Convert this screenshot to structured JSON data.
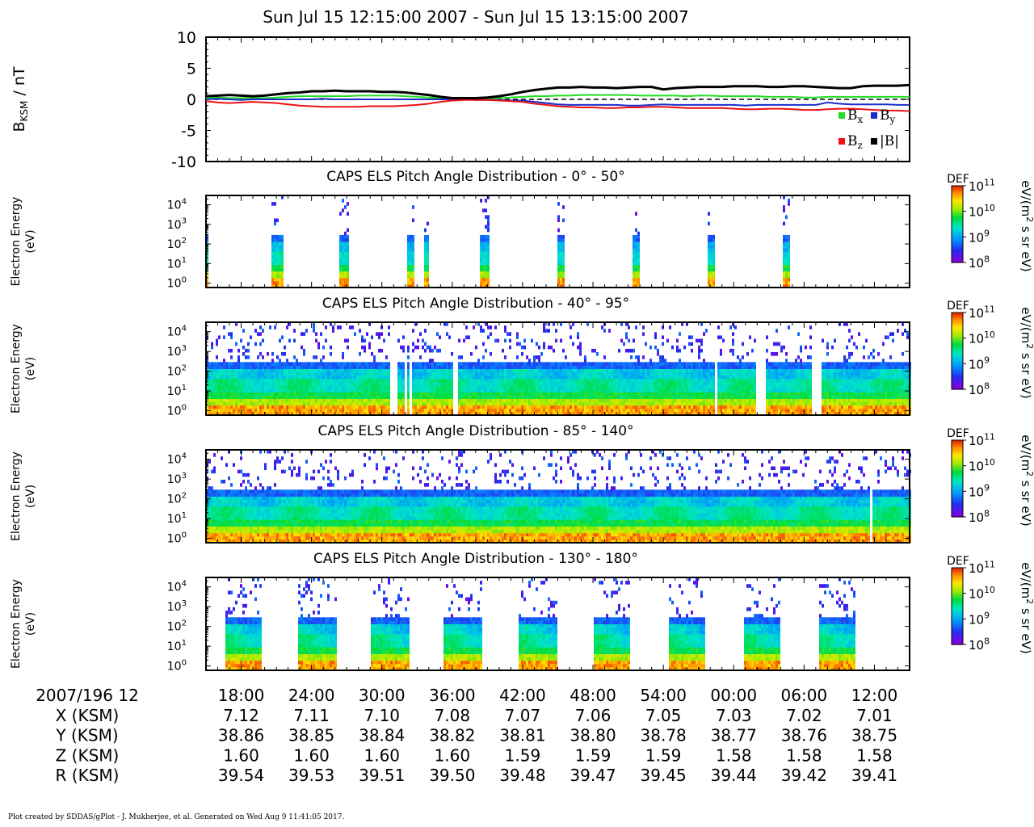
{
  "figure": {
    "title": "Sun Jul 15 12:15:00 2007 - Sun Jul 15 13:15:00 2007",
    "footer": "Plot created by SDDAS/gPlot - J. Mukherjee, et al.  Generated on Wed Aug 9 11:41:05 2017."
  },
  "mag_panel": {
    "ylabel_main": "B",
    "ylabel_sub": "KSM",
    "ylabel_unit": " / nT",
    "legend": [
      {
        "main": "B",
        "sub": "x",
        "color": "#22dd22"
      },
      {
        "main": "B",
        "sub": "y",
        "color": "#1a2ccc"
      },
      {
        "main": "B",
        "sub": "z",
        "color": "#ee1111"
      },
      {
        "main": "|B|",
        "sub": "",
        "color": "#000000"
      }
    ]
  },
  "spectro_common": {
    "ylabel_line1": "Electron Energy",
    "ylabel_line2": "(eV)",
    "cbar_label": "DEF",
    "cbar_unit_pre": "eV/(m",
    "cbar_unit_sup": "2",
    "cbar_unit_post": " s sr eV)",
    "cbar_ticks": [
      {
        "base": "10",
        "exp": "11"
      },
      {
        "base": "10",
        "exp": "10"
      },
      {
        "base": "10",
        "exp": "9"
      },
      {
        "base": "10",
        "exp": "8"
      }
    ],
    "energy_ticks": [
      {
        "base": "10",
        "exp": "4"
      },
      {
        "base": "10",
        "exp": "3"
      },
      {
        "base": "10",
        "exp": "2"
      },
      {
        "base": "10",
        "exp": "1"
      },
      {
        "base": "10",
        "exp": "0"
      }
    ]
  },
  "ephemeris": {
    "date_label": "2007/196 12",
    "times": [
      "18:00",
      "24:00",
      "30:00",
      "36:00",
      "42:00",
      "48:00",
      "54:00",
      "00:00",
      "06:00",
      "12:00"
    ],
    "rows": [
      {
        "label": "X (KSM)",
        "values": [
          "7.12",
          "7.11",
          "7.10",
          "7.08",
          "7.07",
          "7.06",
          "7.05",
          "7.03",
          "7.02",
          "7.01"
        ]
      },
      {
        "label": "Y (KSM)",
        "values": [
          "38.86",
          "38.85",
          "38.84",
          "38.82",
          "38.81",
          "38.80",
          "38.78",
          "38.77",
          "38.76",
          "38.75"
        ]
      },
      {
        "label": "Z (KSM)",
        "values": [
          "1.60",
          "1.60",
          "1.60",
          "1.60",
          "1.59",
          "1.59",
          "1.59",
          "1.58",
          "1.58",
          "1.58"
        ]
      },
      {
        "label": "R (KSM)",
        "values": [
          "39.54",
          "39.53",
          "39.51",
          "39.50",
          "39.48",
          "39.47",
          "39.45",
          "39.44",
          "39.42",
          "39.41"
        ]
      }
    ]
  },
  "chart_data": [
    {
      "type": "line",
      "xlabel": "",
      "ylabel": "BKSM / nT",
      "ylim": [
        -10,
        10
      ],
      "yticks": [
        10,
        5,
        0,
        -5,
        -10
      ],
      "x_minutes": [
        15,
        16,
        17,
        18,
        19,
        20,
        21,
        22,
        23,
        24,
        25,
        26,
        27,
        28,
        29,
        30,
        31,
        32,
        33,
        34,
        35,
        36,
        37,
        38,
        39,
        40,
        41,
        42,
        43,
        44,
        45,
        46,
        47,
        48,
        49,
        50,
        51,
        52,
        53,
        54,
        55,
        56,
        57,
        58,
        59,
        60,
        61,
        62,
        63,
        64,
        65,
        66,
        67,
        68,
        69,
        70,
        71,
        72,
        73,
        74,
        75
      ],
      "series": [
        {
          "name": "Bx",
          "color": "#22dd22",
          "values": [
            0.3,
            0.3,
            0.2,
            0.2,
            0.2,
            0.2,
            0.3,
            0.4,
            0.5,
            0.5,
            0.5,
            0.5,
            0.5,
            0.6,
            0.6,
            0.6,
            0.6,
            0.5,
            0.4,
            0.3,
            0.2,
            0.1,
            0.0,
            0.0,
            0.1,
            0.2,
            0.3,
            0.4,
            0.5,
            0.5,
            0.6,
            0.6,
            0.7,
            0.7,
            0.7,
            0.7,
            0.7,
            0.6,
            0.6,
            0.6,
            0.6,
            0.5,
            0.6,
            0.6,
            0.5,
            0.5,
            0.5,
            0.5,
            0.4,
            0.4,
            0.4,
            0.3,
            0.3,
            0.4,
            0.4,
            0.4,
            0.4,
            0.4,
            0.4,
            0.4,
            0.4
          ]
        },
        {
          "name": "By",
          "color": "#1a2ccc",
          "values": [
            0.0,
            0.1,
            0.0,
            -0.1,
            0.0,
            0.0,
            0.0,
            0.0,
            0.0,
            0.0,
            0.1,
            0.0,
            0.0,
            0.0,
            0.0,
            0.0,
            0.0,
            0.0,
            0.0,
            0.0,
            0.0,
            0.0,
            0.0,
            -0.1,
            -0.1,
            -0.1,
            -0.2,
            -0.2,
            -0.4,
            -0.6,
            -0.8,
            -0.9,
            -0.9,
            -0.9,
            -0.9,
            -0.9,
            -1.0,
            -1.0,
            -0.9,
            -0.8,
            -0.9,
            -0.9,
            -0.9,
            -0.9,
            -0.9,
            -0.9,
            -1.0,
            -0.9,
            -0.9,
            -0.9,
            -0.9,
            -0.9,
            -0.9,
            -0.5,
            -0.7,
            -0.8,
            -0.8,
            -0.8,
            -0.8,
            -0.9,
            -0.9
          ]
        },
        {
          "name": "Bz",
          "color": "#ee1111",
          "values": [
            -0.3,
            -0.5,
            -0.6,
            -0.5,
            -0.4,
            -0.5,
            -0.6,
            -0.8,
            -1.0,
            -1.1,
            -1.2,
            -1.2,
            -1.2,
            -1.2,
            -1.1,
            -1.1,
            -1.1,
            -1.0,
            -0.9,
            -0.7,
            -0.4,
            -0.2,
            -0.1,
            -0.1,
            -0.1,
            -0.2,
            -0.3,
            -0.4,
            -0.7,
            -0.9,
            -1.1,
            -1.2,
            -1.3,
            -1.3,
            -1.4,
            -1.4,
            -1.3,
            -1.3,
            -1.2,
            -1.2,
            -1.3,
            -1.4,
            -1.4,
            -1.4,
            -1.4,
            -1.5,
            -1.6,
            -1.6,
            -1.5,
            -1.5,
            -1.6,
            -1.7,
            -1.7,
            -1.6,
            -1.5,
            -1.5,
            -1.6,
            -1.7,
            -1.8,
            -1.8,
            -1.9
          ]
        },
        {
          "name": "|B|",
          "color": "#000000",
          "values": [
            0.5,
            0.6,
            0.7,
            0.6,
            0.5,
            0.6,
            0.8,
            1.0,
            1.1,
            1.3,
            1.3,
            1.4,
            1.3,
            1.3,
            1.3,
            1.2,
            1.2,
            1.1,
            0.9,
            0.7,
            0.4,
            0.2,
            0.2,
            0.2,
            0.3,
            0.5,
            0.8,
            1.2,
            1.5,
            1.7,
            1.9,
            1.9,
            2.0,
            1.9,
            1.9,
            1.8,
            1.9,
            2.0,
            2.0,
            1.6,
            1.8,
            1.9,
            2.0,
            2.0,
            2.0,
            2.1,
            2.1,
            2.1,
            2.0,
            2.0,
            2.1,
            2.1,
            2.0,
            1.9,
            1.8,
            1.8,
            2.1,
            2.2,
            2.2,
            2.2,
            2.3
          ]
        }
      ]
    },
    {
      "type": "heatmap",
      "title": "CAPS ELS Pitch Angle Distribution - 0° - 50°",
      "yscale": "log",
      "ylim_eV": [
        0.6,
        30000
      ],
      "clim": [
        100000000.0,
        100000000000.0
      ],
      "coverage_minutes": [
        [
          15.0,
          15.2
        ],
        [
          20.4,
          21.5
        ],
        [
          26.3,
          27.0
        ],
        [
          32.0,
          32.6
        ],
        [
          33.5,
          34.0
        ],
        [
          38.2,
          39.1
        ],
        [
          44.9,
          45.5
        ],
        [
          51.2,
          51.8
        ],
        [
          57.6,
          58.2
        ],
        [
          64.0,
          64.6
        ]
      ]
    },
    {
      "type": "heatmap",
      "title": "CAPS ELS Pitch Angle Distribution - 40° - 95°",
      "yscale": "log",
      "ylim_eV": [
        0.6,
        30000
      ],
      "clim": [
        100000000.0,
        100000000000.0
      ],
      "gaps_minutes": [
        [
          30.5,
          31.3
        ],
        [
          31.8,
          32.0
        ],
        [
          32.3,
          32.5
        ],
        [
          36.0,
          36.3
        ],
        [
          58.2,
          58.5
        ],
        [
          61.9,
          62.7
        ],
        [
          66.6,
          67.4
        ]
      ]
    },
    {
      "type": "heatmap",
      "title": "CAPS ELS Pitch Angle Distribution - 85° - 140°",
      "yscale": "log",
      "ylim_eV": [
        0.6,
        30000
      ],
      "clim": [
        100000000.0,
        100000000000.0
      ],
      "gaps_minutes": [
        [
          71.6,
          71.75
        ]
      ]
    },
    {
      "type": "heatmap",
      "title": "CAPS ELS Pitch Angle Distribution - 130° - 180°",
      "yscale": "log",
      "ylim_eV": [
        0.6,
        30000
      ],
      "clim": [
        100000000.0,
        100000000000.0
      ],
      "coverage_minutes": [
        [
          16.5,
          19.7
        ],
        [
          22.8,
          26.0
        ],
        [
          29.0,
          32.2
        ],
        [
          35.2,
          38.4
        ],
        [
          41.6,
          44.8
        ],
        [
          47.9,
          51.1
        ],
        [
          54.3,
          57.5
        ],
        [
          60.7,
          63.9
        ],
        [
          67.1,
          70.3
        ]
      ]
    }
  ]
}
